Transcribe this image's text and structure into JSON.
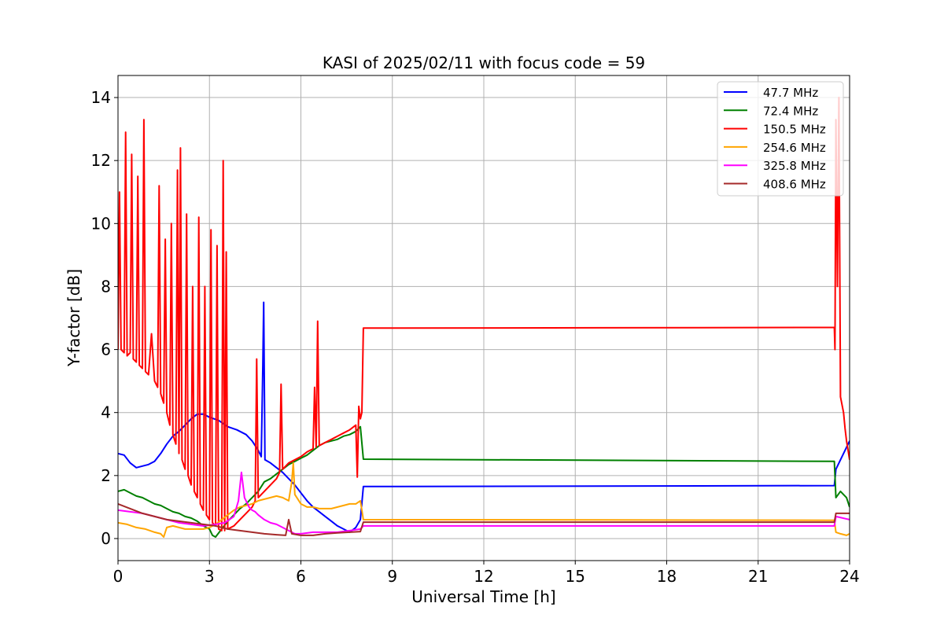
{
  "chart_data": {
    "type": "line",
    "title": "KASI of 2025/02/11 with focus code = 59",
    "xlabel": "Universal Time [h]",
    "ylabel": "Y-factor [dB]",
    "xlim": [
      0,
      24
    ],
    "ylim": [
      -0.7,
      14.7
    ],
    "xticks": [
      0,
      3,
      6,
      9,
      12,
      15,
      18,
      21,
      24
    ],
    "yticks": [
      0,
      2,
      4,
      6,
      8,
      10,
      12,
      14
    ],
    "grid": true,
    "legend_position": "top-right",
    "series": [
      {
        "name": " 47.7 MHz",
        "color": "#0000ff",
        "points": [
          [
            0,
            2.7
          ],
          [
            0.2,
            2.65
          ],
          [
            0.4,
            2.4
          ],
          [
            0.6,
            2.25
          ],
          [
            0.8,
            2.3
          ],
          [
            1.0,
            2.35
          ],
          [
            1.2,
            2.45
          ],
          [
            1.4,
            2.7
          ],
          [
            1.6,
            3.0
          ],
          [
            1.8,
            3.25
          ],
          [
            2.0,
            3.4
          ],
          [
            2.2,
            3.6
          ],
          [
            2.4,
            3.8
          ],
          [
            2.6,
            3.95
          ],
          [
            2.8,
            3.95
          ],
          [
            3.0,
            3.85
          ],
          [
            3.3,
            3.75
          ],
          [
            3.6,
            3.55
          ],
          [
            3.9,
            3.45
          ],
          [
            4.2,
            3.3
          ],
          [
            4.4,
            3.1
          ],
          [
            4.6,
            2.8
          ],
          [
            4.7,
            2.6
          ],
          [
            4.75,
            5.5
          ],
          [
            4.78,
            7.5
          ],
          [
            4.82,
            2.5
          ],
          [
            5.0,
            2.4
          ],
          [
            5.2,
            2.25
          ],
          [
            5.4,
            2.1
          ],
          [
            5.6,
            1.9
          ],
          [
            5.8,
            1.7
          ],
          [
            6.0,
            1.45
          ],
          [
            6.2,
            1.2
          ],
          [
            6.4,
            1.0
          ],
          [
            6.6,
            0.85
          ],
          [
            6.8,
            0.7
          ],
          [
            7.0,
            0.55
          ],
          [
            7.2,
            0.4
          ],
          [
            7.4,
            0.3
          ],
          [
            7.6,
            0.2
          ],
          [
            7.8,
            0.35
          ],
          [
            7.95,
            0.6
          ],
          [
            8.05,
            1.65
          ],
          [
            23.5,
            1.68
          ],
          [
            23.55,
            2.2
          ],
          [
            23.7,
            2.5
          ],
          [
            23.85,
            2.8
          ],
          [
            24,
            3.1
          ]
        ]
      },
      {
        "name": " 72.4 MHz",
        "color": "#008000",
        "points": [
          [
            0,
            1.5
          ],
          [
            0.2,
            1.55
          ],
          [
            0.4,
            1.45
          ],
          [
            0.6,
            1.35
          ],
          [
            0.8,
            1.3
          ],
          [
            1.0,
            1.2
          ],
          [
            1.2,
            1.1
          ],
          [
            1.4,
            1.05
          ],
          [
            1.6,
            0.95
          ],
          [
            1.8,
            0.85
          ],
          [
            2.0,
            0.8
          ],
          [
            2.2,
            0.7
          ],
          [
            2.4,
            0.65
          ],
          [
            2.6,
            0.55
          ],
          [
            2.8,
            0.4
          ],
          [
            3.0,
            0.3
          ],
          [
            3.1,
            0.1
          ],
          [
            3.2,
            0.05
          ],
          [
            3.4,
            0.3
          ],
          [
            3.6,
            0.55
          ],
          [
            3.8,
            0.75
          ],
          [
            4.0,
            0.95
          ],
          [
            4.2,
            1.1
          ],
          [
            4.4,
            1.3
          ],
          [
            4.6,
            1.5
          ],
          [
            4.8,
            1.8
          ],
          [
            5.0,
            1.9
          ],
          [
            5.2,
            2.05
          ],
          [
            5.4,
            2.2
          ],
          [
            5.6,
            2.35
          ],
          [
            5.8,
            2.45
          ],
          [
            6.0,
            2.55
          ],
          [
            6.2,
            2.65
          ],
          [
            6.4,
            2.8
          ],
          [
            6.6,
            2.95
          ],
          [
            6.8,
            3.05
          ],
          [
            7.0,
            3.1
          ],
          [
            7.2,
            3.15
          ],
          [
            7.4,
            3.25
          ],
          [
            7.6,
            3.3
          ],
          [
            7.8,
            3.4
          ],
          [
            7.95,
            3.55
          ],
          [
            8.05,
            2.52
          ],
          [
            23.5,
            2.45
          ],
          [
            23.55,
            1.3
          ],
          [
            23.7,
            1.5
          ],
          [
            23.9,
            1.3
          ],
          [
            24,
            1.0
          ]
        ]
      },
      {
        "name": "150.5 MHz",
        "color": "#ff0000",
        "points": [
          [
            0,
            6.0
          ],
          [
            0.05,
            11.0
          ],
          [
            0.1,
            6.0
          ],
          [
            0.2,
            5.9
          ],
          [
            0.25,
            12.9
          ],
          [
            0.3,
            5.8
          ],
          [
            0.4,
            5.9
          ],
          [
            0.45,
            12.2
          ],
          [
            0.5,
            5.7
          ],
          [
            0.6,
            5.6
          ],
          [
            0.65,
            11.5
          ],
          [
            0.7,
            5.5
          ],
          [
            0.8,
            5.4
          ],
          [
            0.85,
            13.3
          ],
          [
            0.9,
            5.3
          ],
          [
            1.0,
            5.2
          ],
          [
            1.1,
            6.5
          ],
          [
            1.2,
            5.0
          ],
          [
            1.3,
            4.8
          ],
          [
            1.35,
            11.2
          ],
          [
            1.4,
            4.6
          ],
          [
            1.5,
            4.3
          ],
          [
            1.55,
            9.5
          ],
          [
            1.6,
            4.0
          ],
          [
            1.7,
            3.6
          ],
          [
            1.75,
            10.0
          ],
          [
            1.8,
            3.3
          ],
          [
            1.9,
            3.0
          ],
          [
            1.95,
            11.7
          ],
          [
            2.0,
            2.7
          ],
          [
            2.05,
            12.4
          ],
          [
            2.1,
            2.5
          ],
          [
            2.2,
            2.2
          ],
          [
            2.25,
            10.3
          ],
          [
            2.3,
            2.0
          ],
          [
            2.4,
            1.7
          ],
          [
            2.45,
            8.0
          ],
          [
            2.5,
            1.5
          ],
          [
            2.6,
            1.3
          ],
          [
            2.65,
            10.2
          ],
          [
            2.7,
            1.1
          ],
          [
            2.8,
            0.9
          ],
          [
            2.85,
            8.0
          ],
          [
            2.9,
            0.75
          ],
          [
            3.0,
            0.6
          ],
          [
            3.05,
            9.8
          ],
          [
            3.1,
            0.5
          ],
          [
            3.2,
            0.4
          ],
          [
            3.25,
            9.3
          ],
          [
            3.3,
            0.3
          ],
          [
            3.4,
            0.25
          ],
          [
            3.45,
            12.0
          ],
          [
            3.5,
            0.25
          ],
          [
            3.55,
            9.1
          ],
          [
            3.6,
            0.3
          ],
          [
            3.7,
            0.35
          ],
          [
            3.8,
            0.4
          ],
          [
            3.9,
            0.5
          ],
          [
            4.0,
            0.6
          ],
          [
            4.2,
            0.8
          ],
          [
            4.4,
            1.0
          ],
          [
            4.5,
            1.2
          ],
          [
            4.55,
            5.7
          ],
          [
            4.6,
            1.3
          ],
          [
            4.8,
            1.5
          ],
          [
            5.0,
            1.7
          ],
          [
            5.2,
            1.9
          ],
          [
            5.3,
            2.1
          ],
          [
            5.35,
            4.9
          ],
          [
            5.4,
            2.2
          ],
          [
            5.6,
            2.4
          ],
          [
            5.8,
            2.5
          ],
          [
            6.0,
            2.6
          ],
          [
            6.2,
            2.75
          ],
          [
            6.4,
            2.85
          ],
          [
            6.45,
            4.8
          ],
          [
            6.5,
            2.9
          ],
          [
            6.55,
            6.9
          ],
          [
            6.6,
            2.95
          ],
          [
            6.8,
            3.05
          ],
          [
            7.0,
            3.15
          ],
          [
            7.2,
            3.25
          ],
          [
            7.4,
            3.35
          ],
          [
            7.6,
            3.45
          ],
          [
            7.8,
            3.6
          ],
          [
            7.85,
            1.95
          ],
          [
            7.9,
            4.2
          ],
          [
            7.95,
            3.8
          ],
          [
            8.0,
            4.0
          ],
          [
            8.05,
            6.68
          ],
          [
            23.5,
            6.7
          ],
          [
            23.52,
            6.0
          ],
          [
            23.55,
            13.3
          ],
          [
            23.6,
            8.0
          ],
          [
            23.65,
            14.0
          ],
          [
            23.7,
            4.5
          ],
          [
            23.8,
            4.0
          ],
          [
            23.85,
            3.5
          ],
          [
            23.9,
            3.1
          ],
          [
            23.95,
            2.8
          ],
          [
            24,
            2.5
          ]
        ]
      },
      {
        "name": "254.6 MHz",
        "color": "#ffa500",
        "points": [
          [
            0,
            0.5
          ],
          [
            0.3,
            0.45
          ],
          [
            0.6,
            0.35
          ],
          [
            0.9,
            0.3
          ],
          [
            1.2,
            0.2
          ],
          [
            1.4,
            0.15
          ],
          [
            1.5,
            0.05
          ],
          [
            1.6,
            0.35
          ],
          [
            1.8,
            0.4
          ],
          [
            2.0,
            0.35
          ],
          [
            2.2,
            0.3
          ],
          [
            2.4,
            0.3
          ],
          [
            2.6,
            0.3
          ],
          [
            2.8,
            0.3
          ],
          [
            3.0,
            0.35
          ],
          [
            3.2,
            0.45
          ],
          [
            3.4,
            0.6
          ],
          [
            3.6,
            0.75
          ],
          [
            3.8,
            0.9
          ],
          [
            4.0,
            1.0
          ],
          [
            4.2,
            1.05
          ],
          [
            4.4,
            1.1
          ],
          [
            4.6,
            1.2
          ],
          [
            4.8,
            1.25
          ],
          [
            5.0,
            1.3
          ],
          [
            5.2,
            1.35
          ],
          [
            5.4,
            1.3
          ],
          [
            5.6,
            1.2
          ],
          [
            5.7,
            1.8
          ],
          [
            5.75,
            2.4
          ],
          [
            5.8,
            1.4
          ],
          [
            6.0,
            1.1
          ],
          [
            6.2,
            1.0
          ],
          [
            6.4,
            1.0
          ],
          [
            6.6,
            0.95
          ],
          [
            6.8,
            0.95
          ],
          [
            7.0,
            0.95
          ],
          [
            7.2,
            1.0
          ],
          [
            7.4,
            1.05
          ],
          [
            7.6,
            1.1
          ],
          [
            7.8,
            1.1
          ],
          [
            7.95,
            1.2
          ],
          [
            8.05,
            0.6
          ],
          [
            23.5,
            0.58
          ],
          [
            23.55,
            0.2
          ],
          [
            23.7,
            0.15
          ],
          [
            23.9,
            0.1
          ],
          [
            24,
            0.15
          ]
        ]
      },
      {
        "name": "325.8 MHz",
        "color": "#ff00ff",
        "points": [
          [
            0,
            0.9
          ],
          [
            0.4,
            0.85
          ],
          [
            0.8,
            0.8
          ],
          [
            1.2,
            0.7
          ],
          [
            1.6,
            0.6
          ],
          [
            2.0,
            0.5
          ],
          [
            2.4,
            0.45
          ],
          [
            2.8,
            0.4
          ],
          [
            3.2,
            0.45
          ],
          [
            3.5,
            0.5
          ],
          [
            3.8,
            0.7
          ],
          [
            3.95,
            1.2
          ],
          [
            4.05,
            2.1
          ],
          [
            4.15,
            1.3
          ],
          [
            4.3,
            1.0
          ],
          [
            4.4,
            0.9
          ],
          [
            4.5,
            0.85
          ],
          [
            4.6,
            0.75
          ],
          [
            4.8,
            0.6
          ],
          [
            5.0,
            0.5
          ],
          [
            5.2,
            0.45
          ],
          [
            5.4,
            0.35
          ],
          [
            5.6,
            0.25
          ],
          [
            5.8,
            0.15
          ],
          [
            6.0,
            0.15
          ],
          [
            6.4,
            0.2
          ],
          [
            6.8,
            0.2
          ],
          [
            7.2,
            0.2
          ],
          [
            7.6,
            0.25
          ],
          [
            7.95,
            0.3
          ],
          [
            8.05,
            0.4
          ],
          [
            23.5,
            0.4
          ],
          [
            23.55,
            0.7
          ],
          [
            24,
            0.6
          ]
        ]
      },
      {
        "name": "408.6 MHz",
        "color": "#a52a2a",
        "points": [
          [
            0,
            1.1
          ],
          [
            0.4,
            0.95
          ],
          [
            0.8,
            0.8
          ],
          [
            1.2,
            0.7
          ],
          [
            1.6,
            0.6
          ],
          [
            2.0,
            0.55
          ],
          [
            2.4,
            0.5
          ],
          [
            2.8,
            0.45
          ],
          [
            3.2,
            0.4
          ],
          [
            3.6,
            0.3
          ],
          [
            4.0,
            0.25
          ],
          [
            4.4,
            0.2
          ],
          [
            4.8,
            0.15
          ],
          [
            5.2,
            0.12
          ],
          [
            5.5,
            0.1
          ],
          [
            5.6,
            0.6
          ],
          [
            5.7,
            0.15
          ],
          [
            6.0,
            0.1
          ],
          [
            6.4,
            0.1
          ],
          [
            6.8,
            0.15
          ],
          [
            7.2,
            0.18
          ],
          [
            7.6,
            0.2
          ],
          [
            7.95,
            0.22
          ],
          [
            8.05,
            0.52
          ],
          [
            23.5,
            0.52
          ],
          [
            23.55,
            0.8
          ],
          [
            24,
            0.8
          ]
        ]
      }
    ]
  }
}
